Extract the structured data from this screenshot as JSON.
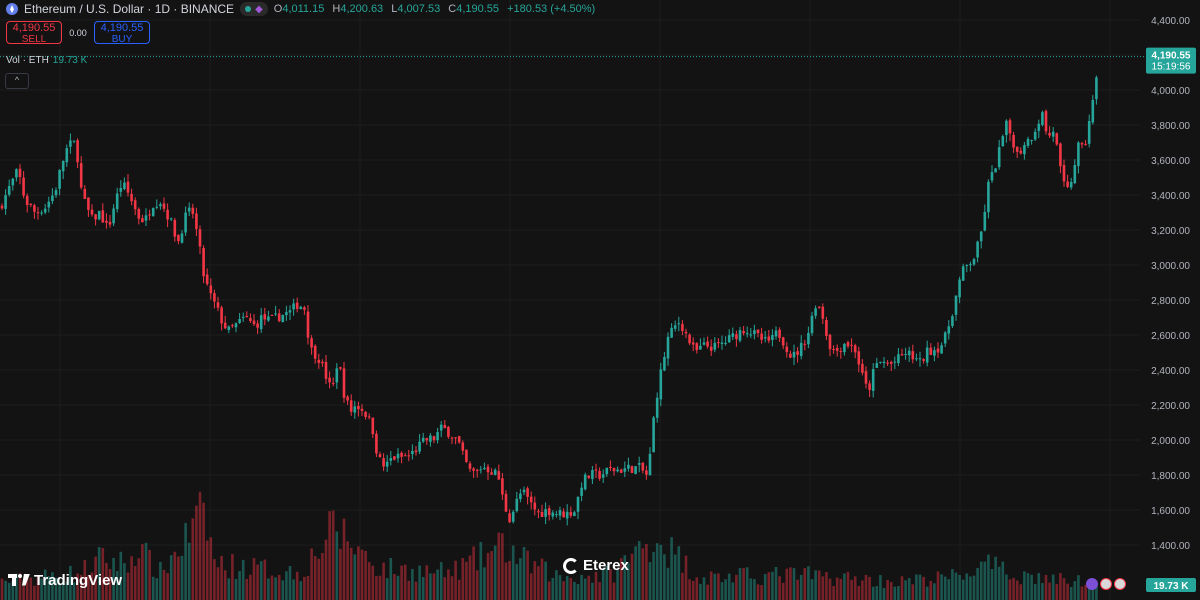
{
  "header": {
    "title": "Ethereum / U.S. Dollar · 1D · BINANCE",
    "ohlc": [
      {
        "k": "O",
        "v": "4,011.15"
      },
      {
        "k": "H",
        "v": "4,200.63"
      },
      {
        "k": "L",
        "v": "4,007.53"
      },
      {
        "k": "C",
        "v": "4,190.55"
      }
    ],
    "change": "+180.53 (+4.50%)"
  },
  "trade": {
    "sell_price": "4,190.55",
    "sell_label": "SELL",
    "spread": "0.00",
    "buy_price": "4,190.55",
    "buy_label": "BUY"
  },
  "volume": {
    "label": "Vol · ETH",
    "value": "19.73 K"
  },
  "collapse_glyph": "^",
  "watermarks": {
    "tradingview": "TradingView",
    "eterex": "Eterex"
  },
  "colors": {
    "up": "#26a69a",
    "down": "#f23645",
    "bg": "#131313",
    "grid": "#1e1e1e"
  },
  "chart_data": {
    "type": "candlestick",
    "symbol": "ETHUSD",
    "interval": "1D",
    "ylim": [
      1300,
      4450
    ],
    "y_ticks": [
      1400,
      1600,
      1800,
      2000,
      2200,
      2400,
      2600,
      2800,
      3000,
      3200,
      3400,
      3600,
      3800,
      4000,
      4200,
      4400
    ],
    "y_tick_labels": [
      "1,400.00",
      "1,600.00",
      "1,800.00",
      "2,000.00",
      "2,200.00",
      "2,400.00",
      "2,600.00",
      "2,800.00",
      "3,000.00",
      "3,200.00",
      "3,400.00",
      "3,600.00",
      "3,800.00",
      "4,000.00",
      "4,200.00",
      "4,400.00"
    ],
    "last_price_label": "4,190.55",
    "countdown_label": "15:19:56",
    "volume_label": "19.73 K",
    "close_path": [
      [
        0,
        3330
      ],
      [
        10,
        3450
      ],
      [
        18,
        3540
      ],
      [
        25,
        3370
      ],
      [
        35,
        3300
      ],
      [
        45,
        3330
      ],
      [
        55,
        3420
      ],
      [
        62,
        3580
      ],
      [
        68,
        3680
      ],
      [
        76,
        3700
      ],
      [
        82,
        3390
      ],
      [
        92,
        3260
      ],
      [
        100,
        3300
      ],
      [
        108,
        3200
      ],
      [
        115,
        3360
      ],
      [
        122,
        3470
      ],
      [
        130,
        3390
      ],
      [
        138,
        3280
      ],
      [
        145,
        3250
      ],
      [
        152,
        3350
      ],
      [
        160,
        3370
      ],
      [
        170,
        3260
      ],
      [
        178,
        3130
      ],
      [
        185,
        3270
      ],
      [
        192,
        3320
      ],
      [
        198,
        3150
      ],
      [
        204,
        2930
      ],
      [
        210,
        2830
      ],
      [
        216,
        2760
      ],
      [
        222,
        2680
      ],
      [
        228,
        2620
      ],
      [
        235,
        2650
      ],
      [
        245,
        2700
      ],
      [
        255,
        2650
      ],
      [
        262,
        2700
      ],
      [
        270,
        2680
      ],
      [
        280,
        2710
      ],
      [
        290,
        2730
      ],
      [
        298,
        2780
      ],
      [
        305,
        2750
      ],
      [
        310,
        2520
      ],
      [
        318,
        2480
      ],
      [
        325,
        2380
      ],
      [
        332,
        2270
      ],
      [
        338,
        2470
      ],
      [
        344,
        2270
      ],
      [
        350,
        2160
      ],
      [
        356,
        2200
      ],
      [
        364,
        2170
      ],
      [
        372,
        2080
      ],
      [
        378,
        1900
      ],
      [
        385,
        1840
      ],
      [
        392,
        1900
      ],
      [
        400,
        1900
      ],
      [
        410,
        1910
      ],
      [
        418,
        1960
      ],
      [
        426,
        2000
      ],
      [
        434,
        2010
      ],
      [
        442,
        2070
      ],
      [
        450,
        2040
      ],
      [
        458,
        1990
      ],
      [
        464,
        1890
      ],
      [
        470,
        1820
      ],
      [
        476,
        1810
      ],
      [
        482,
        1850
      ],
      [
        490,
        1830
      ],
      [
        498,
        1800
      ],
      [
        504,
        1630
      ],
      [
        510,
        1550
      ],
      [
        516,
        1640
      ],
      [
        522,
        1710
      ],
      [
        530,
        1640
      ],
      [
        538,
        1580
      ],
      [
        548,
        1600
      ],
      [
        558,
        1580
      ],
      [
        568,
        1580
      ],
      [
        575,
        1600
      ],
      [
        582,
        1760
      ],
      [
        590,
        1800
      ],
      [
        600,
        1800
      ],
      [
        610,
        1830
      ],
      [
        620,
        1830
      ],
      [
        630,
        1840
      ],
      [
        640,
        1840
      ],
      [
        648,
        1790
      ],
      [
        655,
        2200
      ],
      [
        662,
        2420
      ],
      [
        668,
        2580
      ],
      [
        674,
        2640
      ],
      [
        680,
        2680
      ],
      [
        688,
        2580
      ],
      [
        695,
        2500
      ],
      [
        705,
        2540
      ],
      [
        715,
        2530
      ],
      [
        725,
        2560
      ],
      [
        735,
        2600
      ],
      [
        745,
        2640
      ],
      [
        755,
        2600
      ],
      [
        765,
        2560
      ],
      [
        772,
        2570
      ],
      [
        778,
        2620
      ],
      [
        785,
        2550
      ],
      [
        792,
        2470
      ],
      [
        800,
        2520
      ],
      [
        808,
        2610
      ],
      [
        816,
        2790
      ],
      [
        822,
        2730
      ],
      [
        828,
        2560
      ],
      [
        835,
        2500
      ],
      [
        845,
        2560
      ],
      [
        855,
        2520
      ],
      [
        862,
        2370
      ],
      [
        868,
        2270
      ],
      [
        875,
        2420
      ],
      [
        882,
        2450
      ],
      [
        890,
        2430
      ],
      [
        898,
        2460
      ],
      [
        906,
        2500
      ],
      [
        914,
        2470
      ],
      [
        920,
        2440
      ],
      [
        928,
        2510
      ],
      [
        936,
        2520
      ],
      [
        944,
        2560
      ],
      [
        950,
        2680
      ],
      [
        956,
        2820
      ],
      [
        962,
        2960
      ],
      [
        968,
        3000
      ],
      [
        975,
        3050
      ],
      [
        982,
        3200
      ],
      [
        988,
        3450
      ],
      [
        994,
        3540
      ],
      [
        1000,
        3670
      ],
      [
        1006,
        3800
      ],
      [
        1012,
        3730
      ],
      [
        1018,
        3620
      ],
      [
        1024,
        3700
      ],
      [
        1030,
        3720
      ],
      [
        1036,
        3790
      ],
      [
        1042,
        3870
      ],
      [
        1048,
        3720
      ],
      [
        1054,
        3780
      ],
      [
        1060,
        3550
      ],
      [
        1066,
        3400
      ],
      [
        1072,
        3500
      ],
      [
        1078,
        3680
      ],
      [
        1084,
        3650
      ],
      [
        1090,
        3860
      ],
      [
        1095,
        3980
      ],
      [
        1099,
        4190
      ]
    ],
    "volume_path": [
      [
        0,
        20
      ],
      [
        40,
        25
      ],
      [
        80,
        30
      ],
      [
        100,
        45
      ],
      [
        130,
        40
      ],
      [
        135,
        60
      ],
      [
        160,
        30
      ],
      [
        205,
        95
      ],
      [
        215,
        40
      ],
      [
        300,
        30
      ],
      [
        335,
        80
      ],
      [
        380,
        35
      ],
      [
        450,
        30
      ],
      [
        505,
        60
      ],
      [
        520,
        45
      ],
      [
        560,
        25
      ],
      [
        610,
        28
      ],
      [
        655,
        70
      ],
      [
        700,
        25
      ],
      [
        800,
        28
      ],
      [
        900,
        20
      ],
      [
        950,
        25
      ],
      [
        990,
        38
      ],
      [
        1005,
        30
      ],
      [
        1060,
        22
      ],
      [
        1099,
        20
      ]
    ]
  }
}
